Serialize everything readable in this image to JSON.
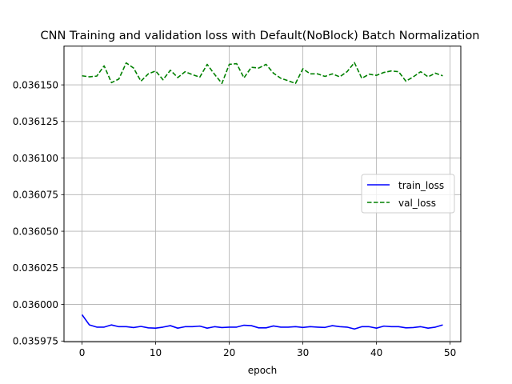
{
  "chart_data": {
    "type": "line",
    "title": "CNN Training and validation loss with Default(NoBlock) Batch Normalization",
    "xlabel": "epoch",
    "ylabel": "",
    "xlim": [
      -2.45,
      51.45
    ],
    "ylim": [
      0.0359745,
      0.0361765
    ],
    "xticks": [
      0,
      10,
      20,
      30,
      40,
      50
    ],
    "yticks": [
      0.035975,
      0.036,
      0.036025,
      0.03605,
      0.036075,
      0.0361,
      0.036125,
      0.03615
    ],
    "ytick_labels": [
      "0.035975",
      "0.036000",
      "0.036025",
      "0.036050",
      "0.036075",
      "0.036100",
      "0.036125",
      "0.036150"
    ],
    "xtick_labels": [
      "0",
      "10",
      "20",
      "30",
      "40",
      "50"
    ],
    "grid": true,
    "legend_position": "center-right",
    "x": [
      0,
      1,
      2,
      3,
      4,
      5,
      6,
      7,
      8,
      9,
      10,
      11,
      12,
      13,
      14,
      15,
      16,
      17,
      18,
      19,
      20,
      21,
      22,
      23,
      24,
      25,
      26,
      27,
      28,
      29,
      30,
      31,
      32,
      33,
      34,
      35,
      36,
      37,
      38,
      39,
      40,
      41,
      42,
      43,
      44,
      45,
      46,
      47,
      48,
      49
    ],
    "series": [
      {
        "name": "train_loss",
        "color": "#0000ff",
        "style": "solid",
        "values": [
          0.035993,
          0.035986,
          0.0359845,
          0.0359845,
          0.035986,
          0.0359848,
          0.0359848,
          0.0359842,
          0.035985,
          0.035984,
          0.0359838,
          0.0359845,
          0.0359855,
          0.0359838,
          0.0359848,
          0.0359848,
          0.0359852,
          0.0359838,
          0.0359848,
          0.0359842,
          0.0359845,
          0.0359845,
          0.0359858,
          0.0359855,
          0.035984,
          0.035984,
          0.0359853,
          0.0359845,
          0.0359845,
          0.0359848,
          0.0359843,
          0.0359848,
          0.0359845,
          0.0359843,
          0.0359855,
          0.0359848,
          0.0359845,
          0.0359832,
          0.0359848,
          0.0359848,
          0.0359838,
          0.0359852,
          0.0359848,
          0.0359848,
          0.035984,
          0.0359842,
          0.0359848,
          0.0359838,
          0.0359845,
          0.035986
        ]
      },
      {
        "name": "val_loss",
        "color": "#008000",
        "style": "dashed",
        "values": [
          0.0361562,
          0.0361555,
          0.036156,
          0.036163,
          0.0361515,
          0.036154,
          0.036165,
          0.0361615,
          0.0361525,
          0.0361575,
          0.0361595,
          0.0361535,
          0.03616,
          0.036155,
          0.036159,
          0.036157,
          0.0361553,
          0.036164,
          0.0361572,
          0.036151,
          0.036164,
          0.0361645,
          0.0361548,
          0.036162,
          0.0361615,
          0.036164,
          0.036158,
          0.0361545,
          0.0361528,
          0.036151,
          0.036161,
          0.0361575,
          0.0361575,
          0.0361558,
          0.0361575,
          0.0361555,
          0.036159,
          0.0361652,
          0.0361545,
          0.0361573,
          0.0361565,
          0.0361585,
          0.0361595,
          0.036159,
          0.0361525,
          0.0361555,
          0.036159,
          0.0361555,
          0.036158,
          0.0361562
        ]
      }
    ]
  }
}
